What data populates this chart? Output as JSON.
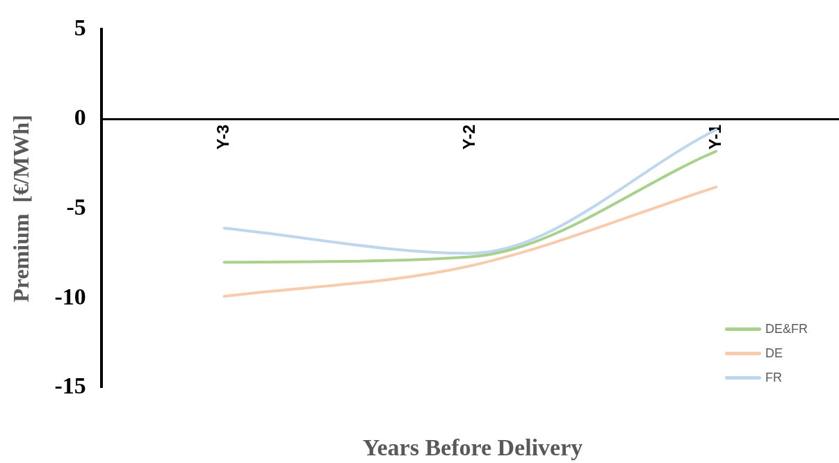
{
  "chart_data": {
    "type": "line",
    "xlabel": "Years Before Delivery",
    "ylabel": "Premium  [€/MWh]",
    "categories": [
      "Y-3",
      "Y-2",
      "Y-1"
    ],
    "series": [
      {
        "name": "DE&FR",
        "color": "#a9d18e",
        "values": [
          -8.0,
          -7.7,
          -1.8
        ]
      },
      {
        "name": "DE",
        "color": "#f8cbad",
        "values": [
          -9.9,
          -8.2,
          -3.8
        ]
      },
      {
        "name": "FR",
        "color": "#bdd7ee",
        "values": [
          -6.1,
          -7.5,
          -0.6
        ]
      }
    ],
    "ylim": [
      -15,
      5
    ],
    "yticks": [
      -15,
      -10,
      -5,
      0,
      5
    ],
    "grid": false,
    "legend": "bottom right",
    "marker": "none",
    "line_style": "solid"
  }
}
